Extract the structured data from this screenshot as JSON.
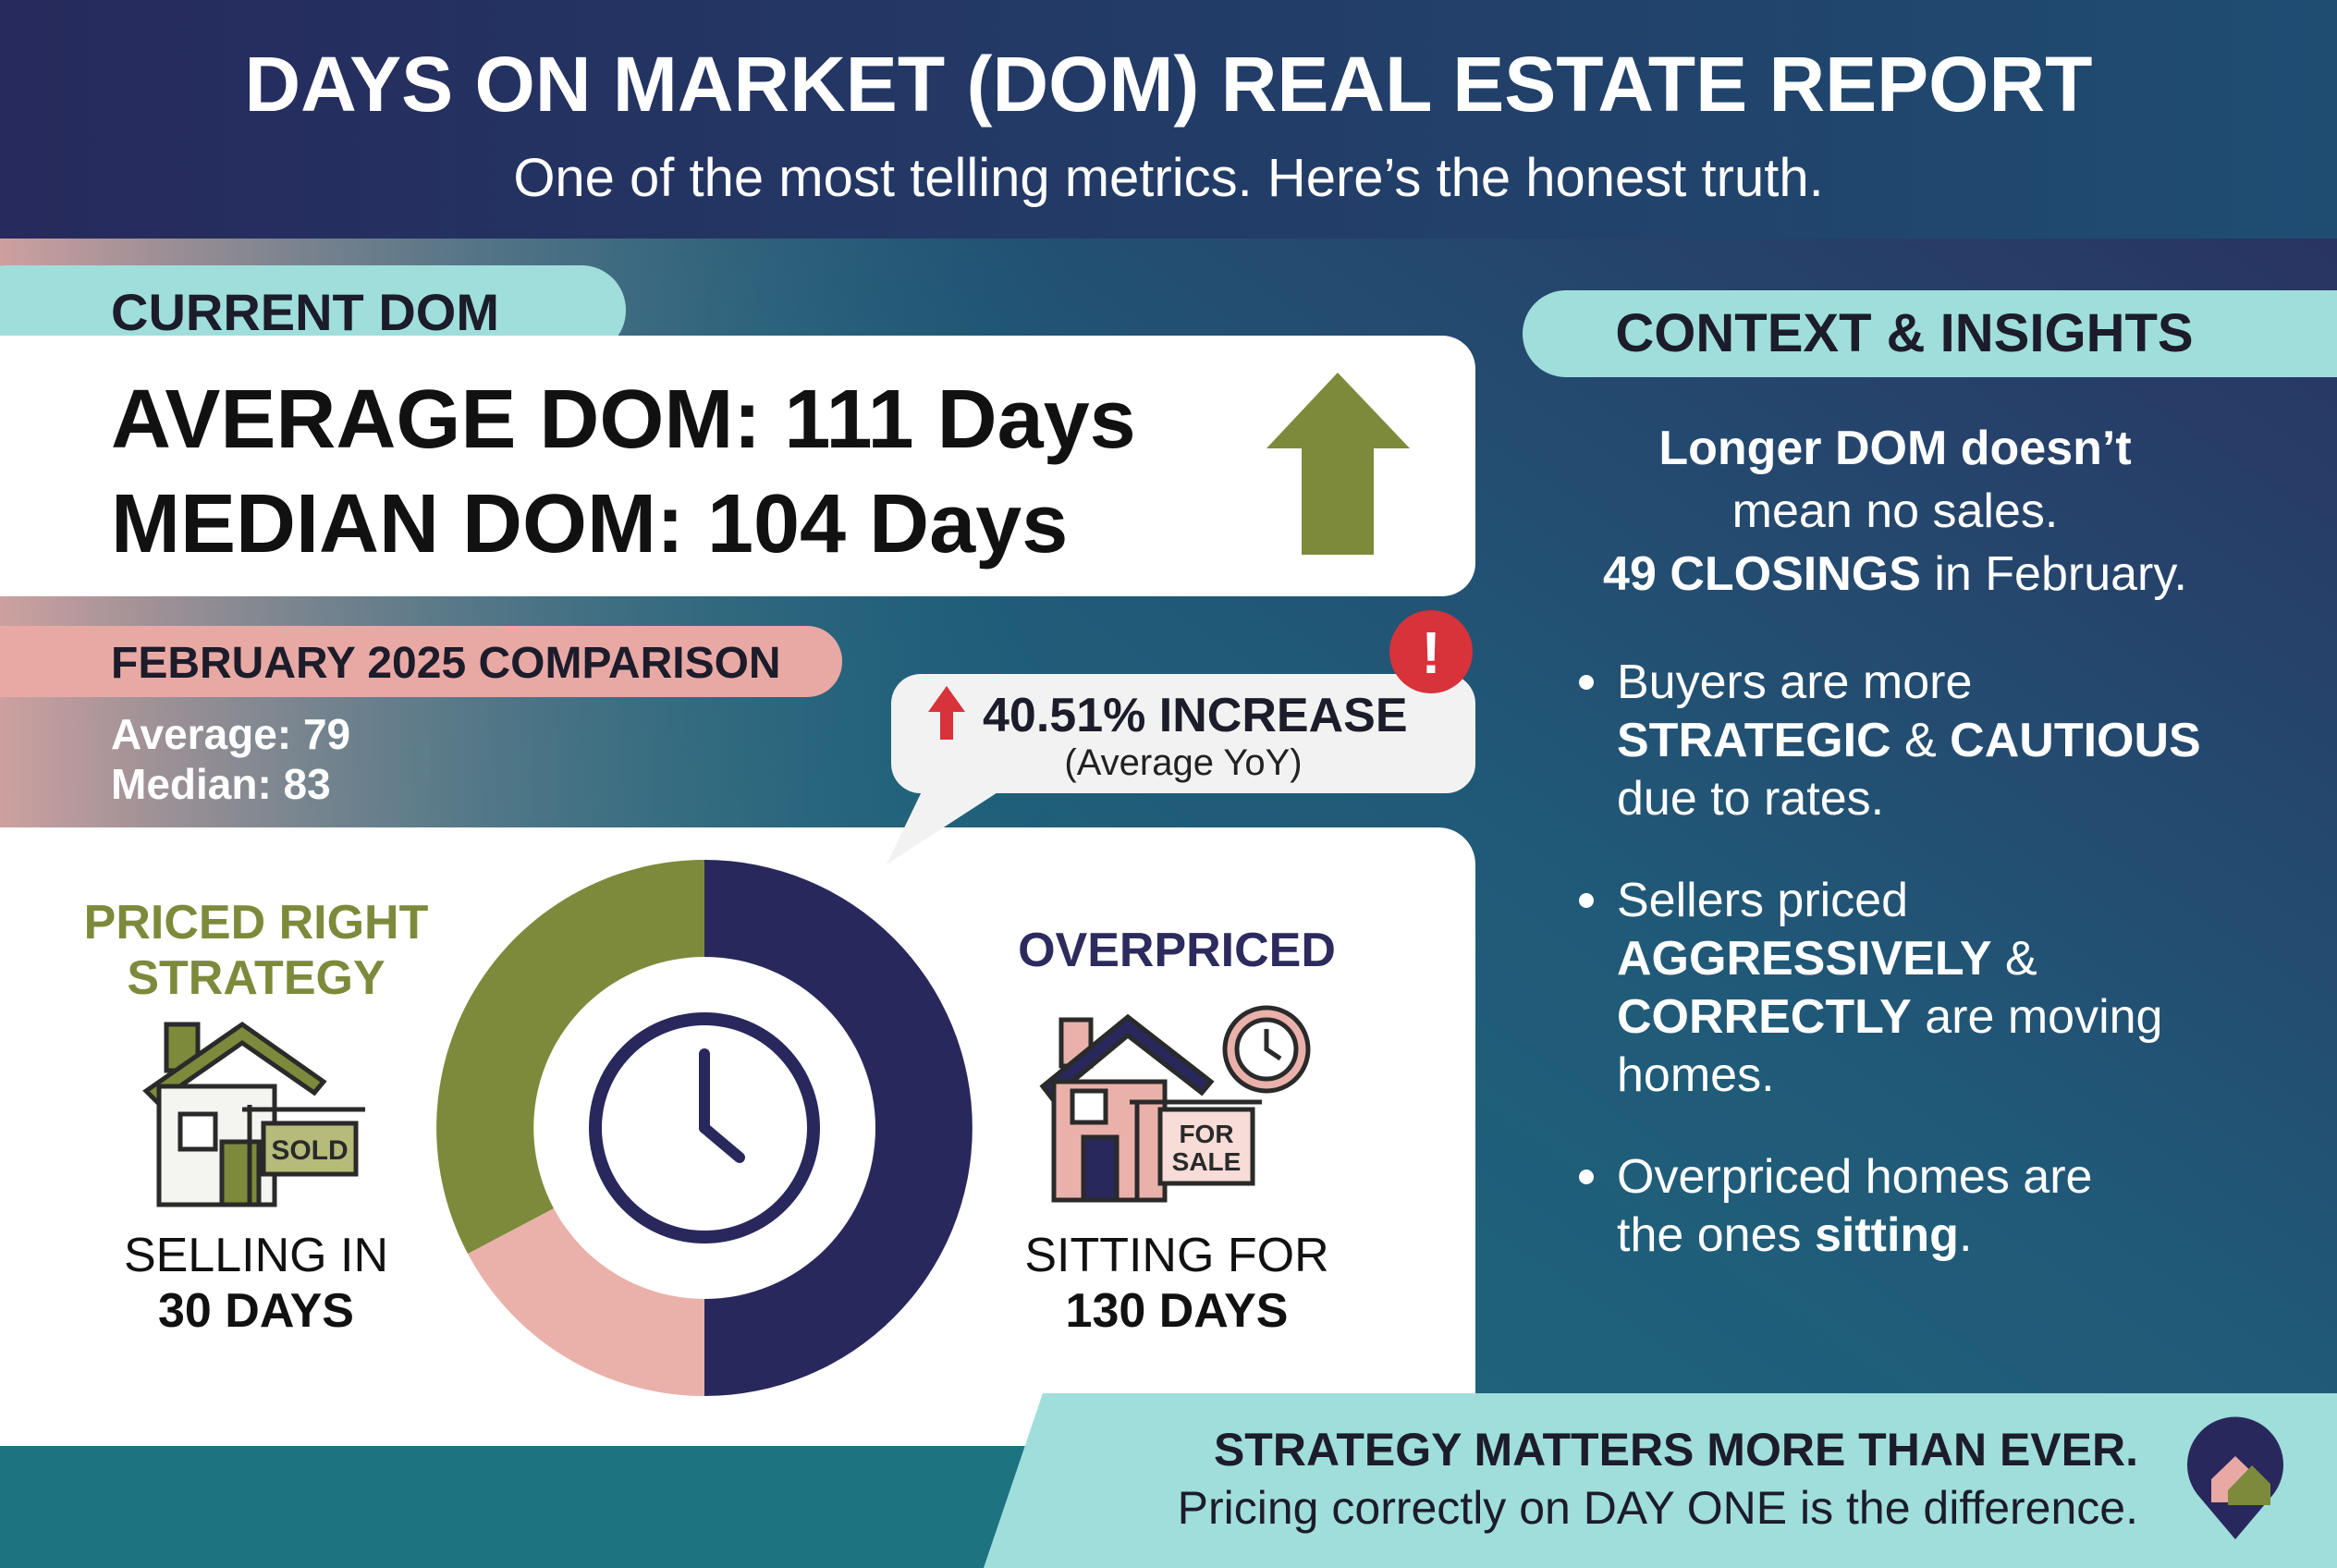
{
  "header": {
    "title": "DAYS ON MARKET (DOM) REAL ESTATE REPORT",
    "subtitle": "One of the most telling metrics. Here’s the honest truth."
  },
  "current_dom": {
    "label": "CURRENT DOM",
    "average": "AVERAGE DOM: 111 Days",
    "median": "MEDIAN DOM: 104 Days"
  },
  "comparison": {
    "label": "FEBRUARY 2025 COMPARISON",
    "average": "Average: 79",
    "median": "Median: 83",
    "callout": {
      "badge": "!",
      "headline": "40.51% INCREASE",
      "note": "(Average YoY)"
    }
  },
  "strategies": [
    {
      "title_1": "PRICED RIGHT",
      "title_2": "STRATEGY",
      "sign": "SOLD",
      "caption_1": "SELLING IN",
      "caption_2": "30 DAYS"
    },
    {
      "title_1": "OVERPRICED",
      "sign_1": "FOR",
      "sign_2": "SALE",
      "caption_1": "SITTING FOR",
      "caption_2": "130 DAYS"
    }
  ],
  "insights": {
    "label": "CONTEXT & INSIGHTS",
    "lead": [
      [
        {
          "text": "Longer DOM doesn’t",
          "bold": true
        }
      ],
      [
        {
          "text": "mean no sales."
        }
      ],
      [
        {
          "text": "49 CLOSINGS",
          "bold": true
        },
        {
          "text": " in February."
        }
      ]
    ],
    "bullets": [
      [
        [
          {
            "text": "Buyers are more"
          }
        ],
        [
          {
            "text": "STRATEGIC",
            "bold": true
          },
          {
            "text": " & "
          },
          {
            "text": "CAUTIOUS",
            "bold": true
          }
        ],
        [
          {
            "text": "due to rates."
          }
        ]
      ],
      [
        [
          {
            "text": "Sellers priced"
          }
        ],
        [
          {
            "text": "AGGRESSIVELY",
            "bold": true
          },
          {
            "text": " &"
          }
        ],
        [
          {
            "text": "CORRECTLY",
            "bold": true
          },
          {
            "text": " are moving"
          }
        ],
        [
          {
            "text": "homes."
          }
        ]
      ],
      [
        [
          {
            "text": "Overpriced homes are"
          }
        ],
        [
          {
            "text": "the ones "
          },
          {
            "text": "sitting",
            "bold": true
          },
          {
            "text": "."
          }
        ]
      ]
    ]
  },
  "footer": {
    "headline": "STRATEGY MATTERS MORE THAN EVER.",
    "tagline": "Pricing correctly on DAY ONE is the difference."
  }
}
